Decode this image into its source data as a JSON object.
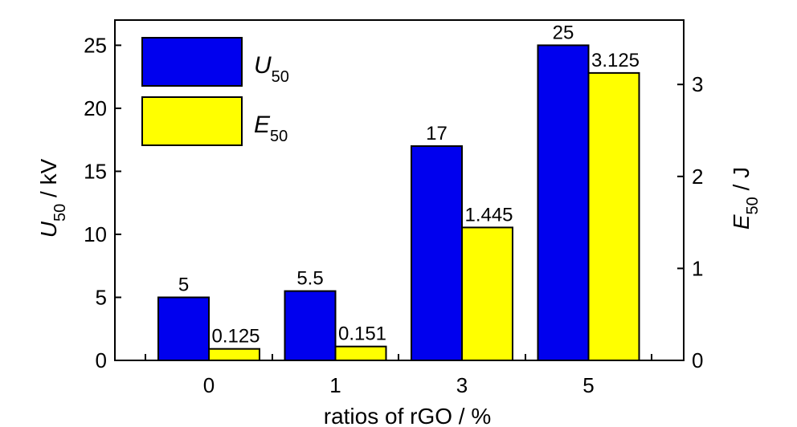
{
  "chart_data": {
    "type": "bar",
    "categories": [
      "0",
      "1",
      "3",
      "5"
    ],
    "xlabel": "ratios of rGO / %",
    "ylabel": {
      "symbol": "U",
      "subscript": "50",
      "unit": " / kV"
    },
    "y2label": {
      "symbol": "E",
      "subscript": "50",
      "unit": " / J"
    },
    "ylim": [
      0,
      27
    ],
    "y2lim": [
      0,
      3.7
    ],
    "yticks": [
      0,
      5,
      10,
      15,
      20,
      25
    ],
    "y2ticks": [
      0,
      1,
      2,
      3
    ],
    "legend_position": "top-left",
    "series": [
      {
        "name": {
          "symbol": "U",
          "subscript": "50"
        },
        "axis": "left",
        "color": "#0000ee",
        "values": [
          5,
          5.5,
          17,
          25
        ],
        "labels": [
          "5",
          "5.5",
          "17",
          "25"
        ]
      },
      {
        "name": {
          "symbol": "E",
          "subscript": "50"
        },
        "axis": "right",
        "color": "#ffff00",
        "values": [
          0.125,
          0.151,
          1.445,
          3.125
        ],
        "labels": [
          "0.125",
          "0.151",
          "1.445",
          "3.125"
        ]
      }
    ]
  }
}
